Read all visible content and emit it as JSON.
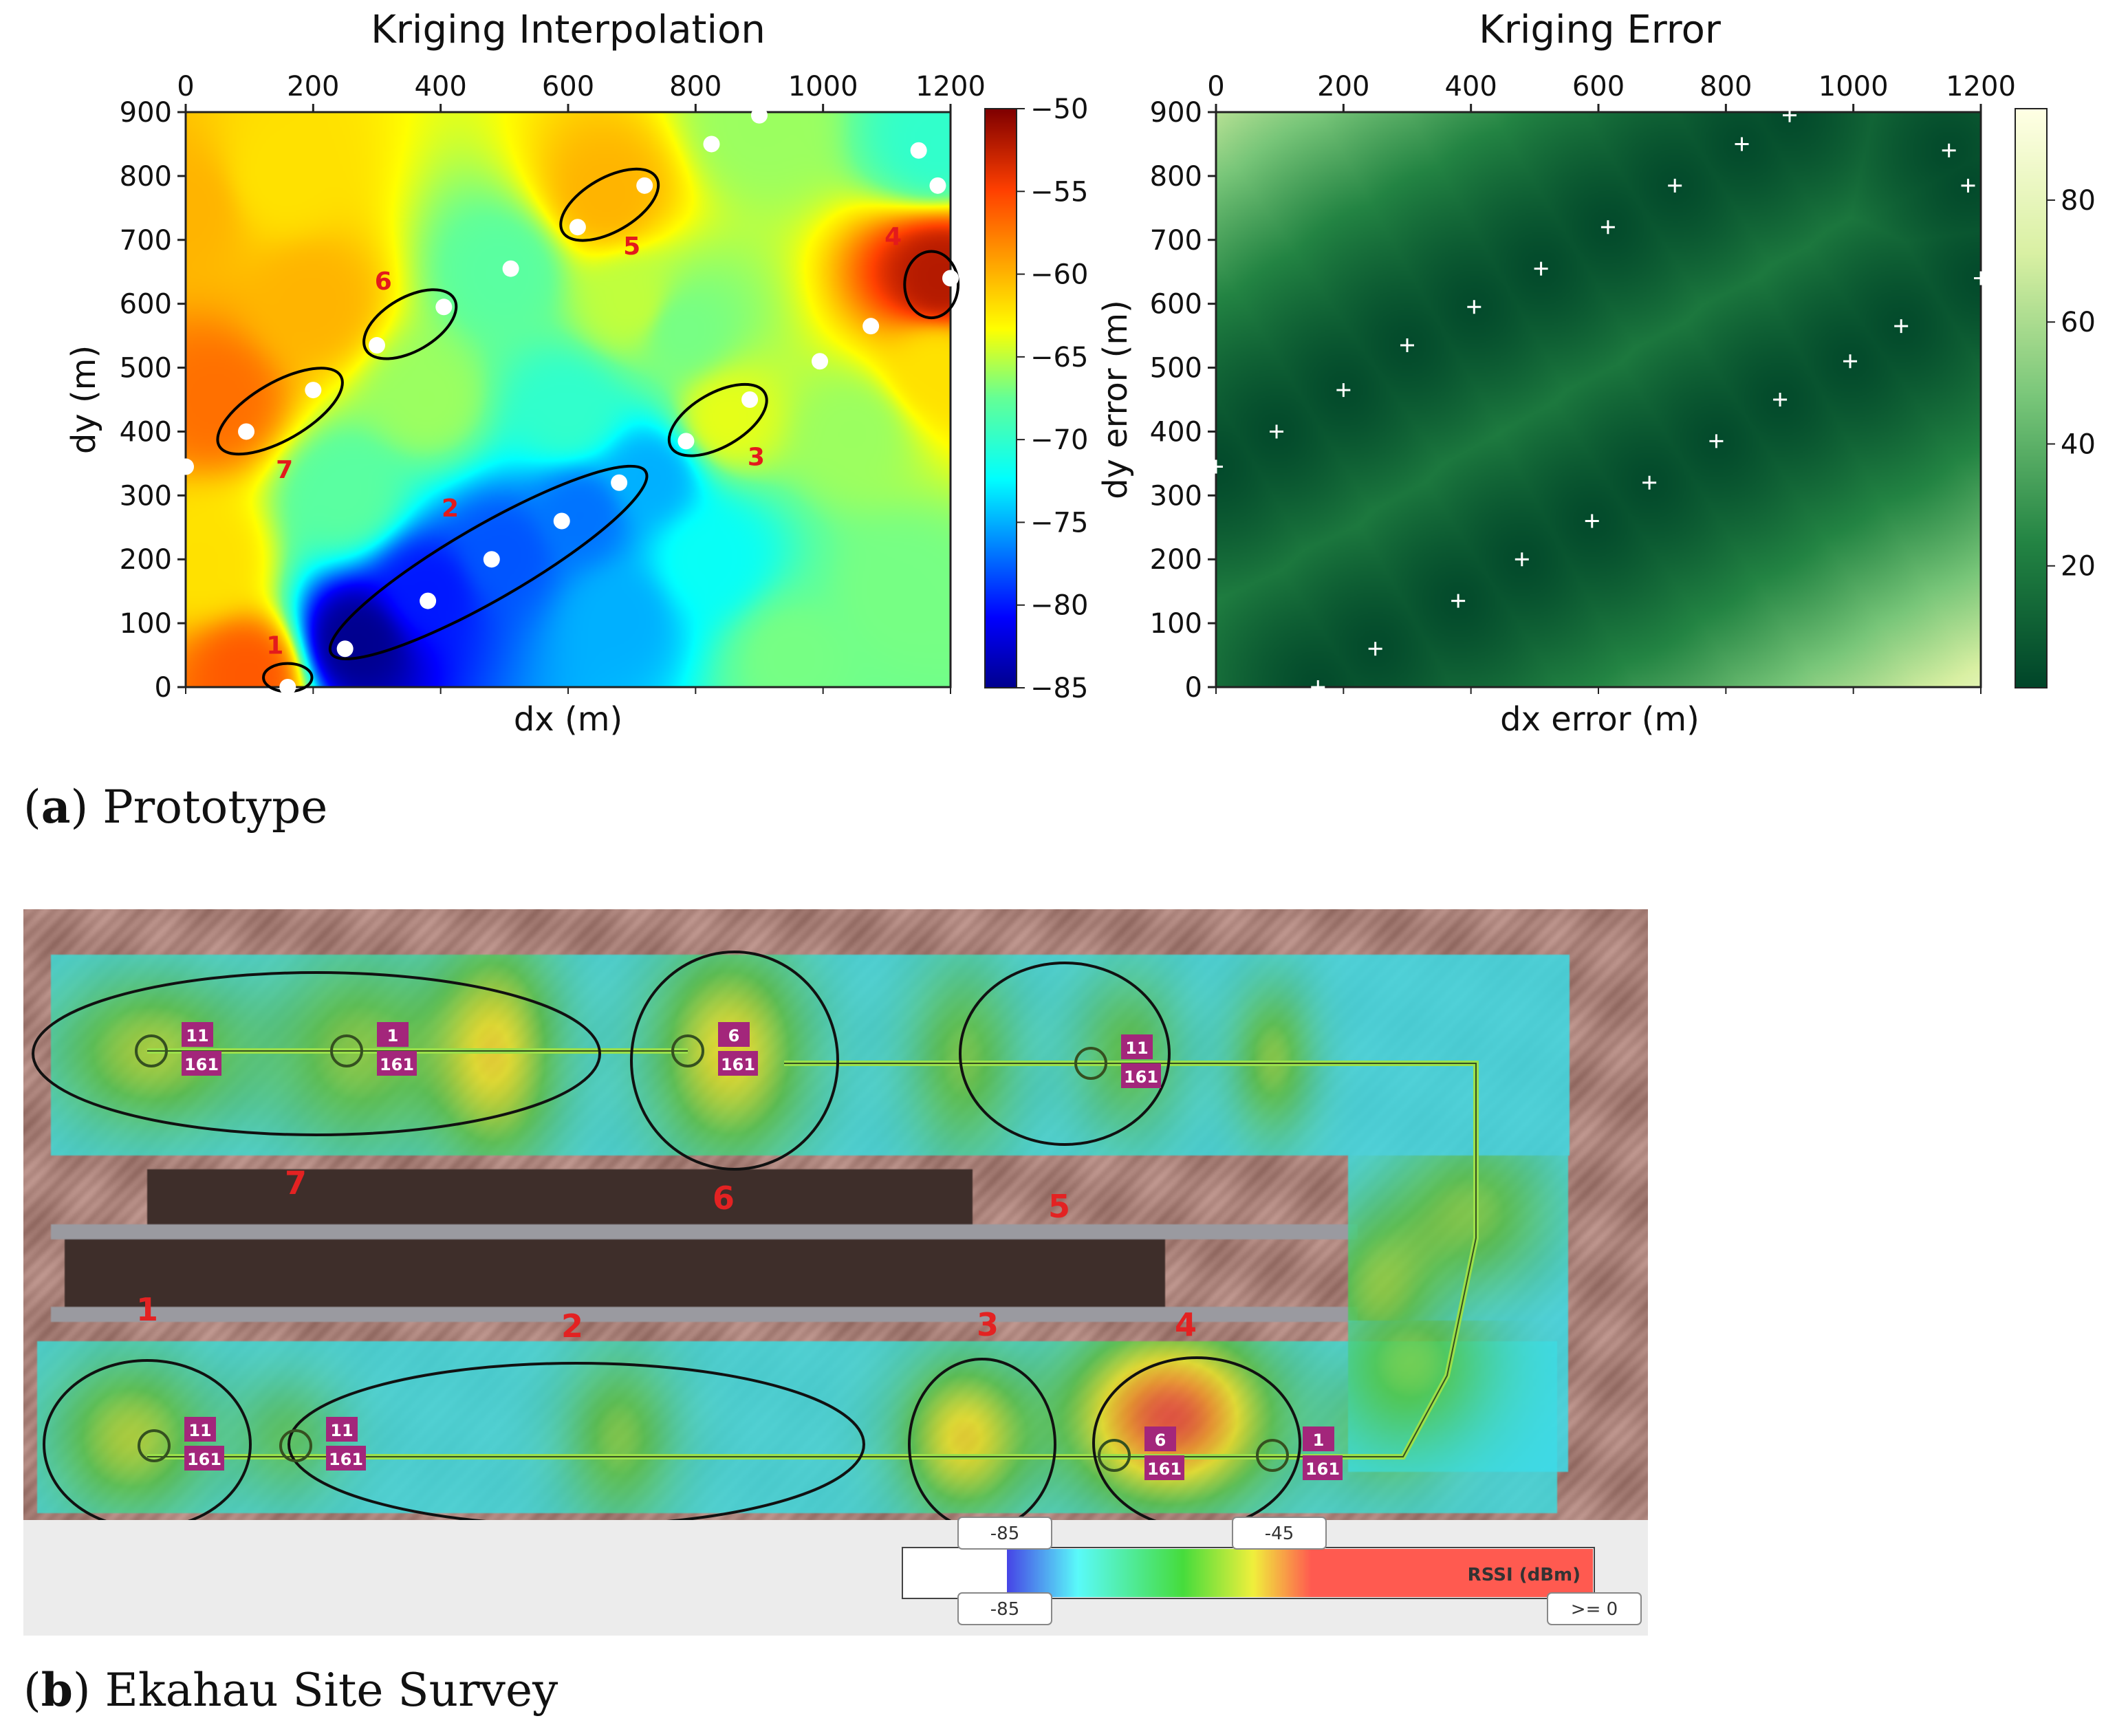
{
  "captions": {
    "a_letter": "a",
    "a_text": " Prototype",
    "b_letter": "b",
    "b_text": " Ekahau Site Survey"
  },
  "chart_data": [
    {
      "type": "heatmap",
      "title": "Kriging Interpolation",
      "xlabel": "dx (m)",
      "ylabel": "dy (m)",
      "xlim": [
        0,
        1200
      ],
      "ylim": [
        0,
        900
      ],
      "xticks": [
        "0",
        "200",
        "400",
        "600",
        "800",
        "1000",
        "1200"
      ],
      "yticks": [
        "0",
        "100",
        "200",
        "300",
        "400",
        "500",
        "600",
        "700",
        "800",
        "900"
      ],
      "x_axis_position": "top",
      "colorbar": {
        "range": [
          -85,
          -50
        ],
        "ticks": [
          "−85",
          "−80",
          "−75",
          "−70",
          "−65",
          "−60",
          "−55",
          "−50"
        ],
        "colormap": "jet"
      },
      "points": [
        {
          "x": 0,
          "y": 345
        },
        {
          "x": 95,
          "y": 400
        },
        {
          "x": 200,
          "y": 465
        },
        {
          "x": 300,
          "y": 535
        },
        {
          "x": 405,
          "y": 595
        },
        {
          "x": 510,
          "y": 655
        },
        {
          "x": 615,
          "y": 720
        },
        {
          "x": 720,
          "y": 785
        },
        {
          "x": 825,
          "y": 850
        },
        {
          "x": 900,
          "y": 895
        },
        {
          "x": 160,
          "y": 0
        },
        {
          "x": 250,
          "y": 60
        },
        {
          "x": 380,
          "y": 135
        },
        {
          "x": 480,
          "y": 200
        },
        {
          "x": 590,
          "y": 260
        },
        {
          "x": 680,
          "y": 320
        },
        {
          "x": 785,
          "y": 385
        },
        {
          "x": 885,
          "y": 450
        },
        {
          "x": 995,
          "y": 510
        },
        {
          "x": 1075,
          "y": 565
        },
        {
          "x": 1200,
          "y": 640
        },
        {
          "x": 1150,
          "y": 840
        },
        {
          "x": 1180,
          "y": 785
        }
      ],
      "field_sources": [
        {
          "x": 50,
          "y": 450,
          "value": -57
        },
        {
          "x": 0,
          "y": 750,
          "value": -60
        },
        {
          "x": 150,
          "y": 800,
          "value": -62
        },
        {
          "x": 30,
          "y": 200,
          "value": -62
        },
        {
          "x": 100,
          "y": 20,
          "value": -56
        },
        {
          "x": 200,
          "y": 600,
          "value": -60
        },
        {
          "x": 660,
          "y": 770,
          "value": -60
        },
        {
          "x": 1185,
          "y": 640,
          "value": -52
        },
        {
          "x": 1180,
          "y": 850,
          "value": -70
        },
        {
          "x": 900,
          "y": 880,
          "value": -66
        },
        {
          "x": 500,
          "y": 650,
          "value": -68
        },
        {
          "x": 780,
          "y": 560,
          "value": -67
        },
        {
          "x": 850,
          "y": 420,
          "value": -64
        },
        {
          "x": 1050,
          "y": 400,
          "value": -66
        },
        {
          "x": 1120,
          "y": 150,
          "value": -67
        },
        {
          "x": 950,
          "y": 50,
          "value": -67
        },
        {
          "x": 1180,
          "y": 500,
          "value": -62
        },
        {
          "x": 270,
          "y": 70,
          "value": -85
        },
        {
          "x": 380,
          "y": 150,
          "value": -80
        },
        {
          "x": 500,
          "y": 210,
          "value": -78
        },
        {
          "x": 620,
          "y": 270,
          "value": -77
        },
        {
          "x": 730,
          "y": 330,
          "value": -75
        },
        {
          "x": 680,
          "y": 110,
          "value": -75
        },
        {
          "x": 820,
          "y": 200,
          "value": -72
        },
        {
          "x": 600,
          "y": 430,
          "value": -70
        },
        {
          "x": 250,
          "y": 300,
          "value": -68
        },
        {
          "x": 380,
          "y": 450,
          "value": -66
        },
        {
          "x": 700,
          "y": 600,
          "value": -65
        }
      ],
      "clusters": [
        {
          "label": "1",
          "cx": 160,
          "cy": 15,
          "rx": 38,
          "ry": 22,
          "angle": 0,
          "label_x": 140,
          "label_y": 65
        },
        {
          "label": "2",
          "cx": 475,
          "cy": 195,
          "rx": 285,
          "ry": 58,
          "angle": 30,
          "label_x": 415,
          "label_y": 280
        },
        {
          "label": "3",
          "cx": 835,
          "cy": 418,
          "rx": 85,
          "ry": 42,
          "angle": 30,
          "label_x": 895,
          "label_y": 360
        },
        {
          "label": "4",
          "cx": 1170,
          "cy": 630,
          "rx": 42,
          "ry": 52,
          "angle": 0,
          "label_x": 1110,
          "label_y": 705
        },
        {
          "label": "5",
          "cx": 665,
          "cy": 755,
          "rx": 85,
          "ry": 42,
          "angle": 30,
          "label_x": 700,
          "label_y": 690
        },
        {
          "label": "6",
          "cx": 352,
          "cy": 568,
          "rx": 80,
          "ry": 42,
          "angle": 30,
          "label_x": 310,
          "label_y": 635
        },
        {
          "label": "7",
          "cx": 148,
          "cy": 432,
          "rx": 110,
          "ry": 45,
          "angle": 30,
          "label_x": 155,
          "label_y": 340
        }
      ]
    },
    {
      "type": "heatmap",
      "title": "Kriging Error",
      "xlabel": "dx error (m)",
      "ylabel": "dy error (m)",
      "xlim": [
        0,
        1200
      ],
      "ylim": [
        0,
        900
      ],
      "xticks": [
        "0",
        "200",
        "400",
        "600",
        "800",
        "1000",
        "1200"
      ],
      "yticks": [
        "0",
        "100",
        "200",
        "300",
        "400",
        "500",
        "600",
        "700",
        "800",
        "900"
      ],
      "x_axis_position": "top",
      "colorbar": {
        "range": [
          0,
          95
        ],
        "ticks": [
          "20",
          "40",
          "60",
          "80"
        ],
        "colormap": "YlGn_r"
      },
      "error_model": {
        "low_near_points": 2,
        "far_corner_value": 95
      }
    },
    {
      "type": "heatmap",
      "title": "Ekahau Site Survey",
      "legend": {
        "label": "RSSI (dBm)",
        "slider_top_left": "-85",
        "slider_top_right": "-45",
        "slider_bottom_left": "-85",
        "slider_bottom_right": ">= 0"
      },
      "zone_labels": [
        "1",
        "2",
        "3",
        "4",
        "5",
        "6",
        "7"
      ],
      "ap_tags": [
        {
          "ch_top": "11",
          "ch_bottom": "161"
        },
        {
          "ch_top": "1",
          "ch_bottom": "161"
        },
        {
          "ch_top": "6",
          "ch_bottom": "161"
        },
        {
          "ch_top": "11",
          "ch_bottom": "161"
        },
        {
          "ch_top": "11",
          "ch_bottom": "161"
        },
        {
          "ch_top": "11",
          "ch_bottom": "161"
        },
        {
          "ch_top": "6",
          "ch_bottom": "161"
        },
        {
          "ch_top": "1",
          "ch_bottom": "161"
        }
      ],
      "colors": {
        "red_label": "#e32222",
        "tag": "#a3267b",
        "path": "#9be04a"
      }
    }
  ]
}
